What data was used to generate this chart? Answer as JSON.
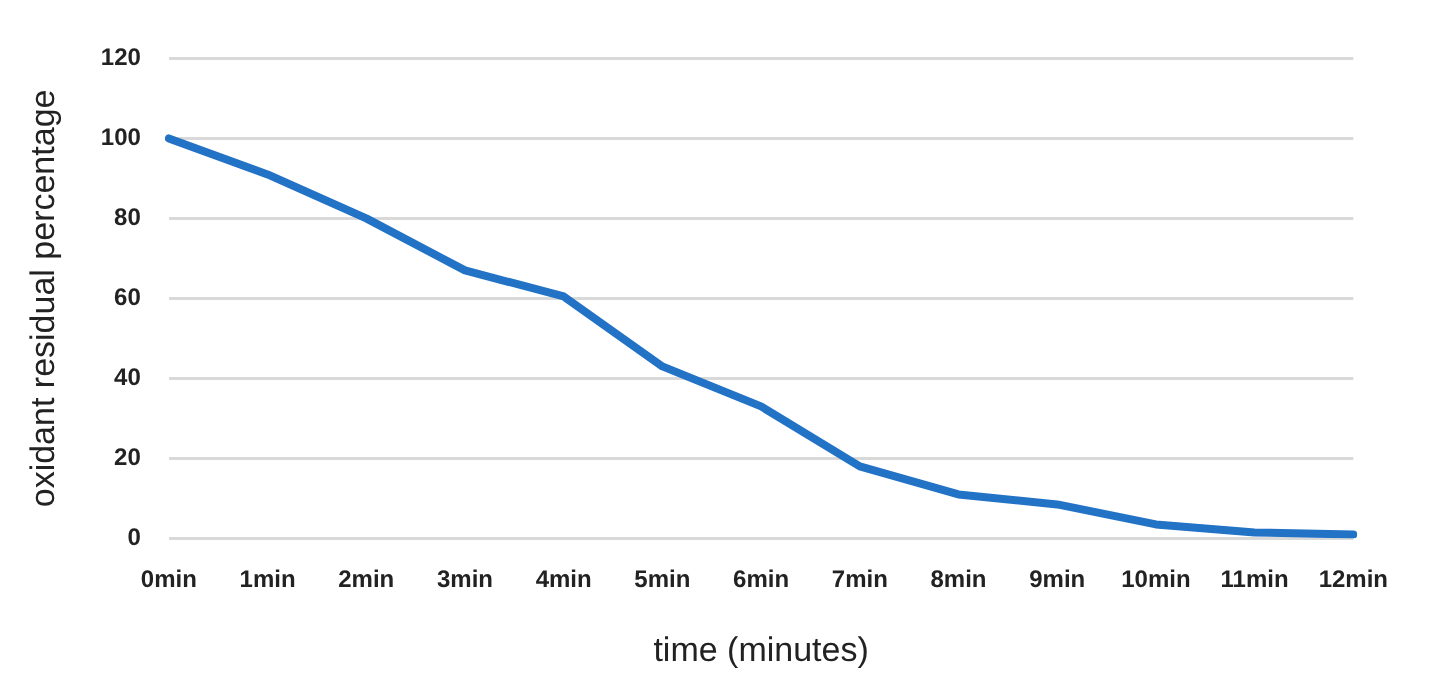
{
  "chart_data": {
    "type": "line",
    "xlabel": "time (minutes)",
    "ylabel": "oxidant residual percentage",
    "categories": [
      "0min",
      "1min",
      "2min",
      "3min",
      "4min",
      "5min",
      "6min",
      "7min",
      "8min",
      "9min",
      "10min",
      "11min",
      "12min"
    ],
    "series": [
      {
        "color": "#2272c6",
        "values": [
          100,
          91,
          80,
          67,
          60.5,
          43,
          33,
          18,
          11,
          8.5,
          3.5,
          1.5,
          1
        ]
      }
    ],
    "ylim": [
      0,
      120
    ],
    "yticks": [
      0,
      20,
      40,
      60,
      80,
      100,
      120
    ],
    "grid": "y",
    "legend": false,
    "marker": "none",
    "line_style": "solid"
  }
}
